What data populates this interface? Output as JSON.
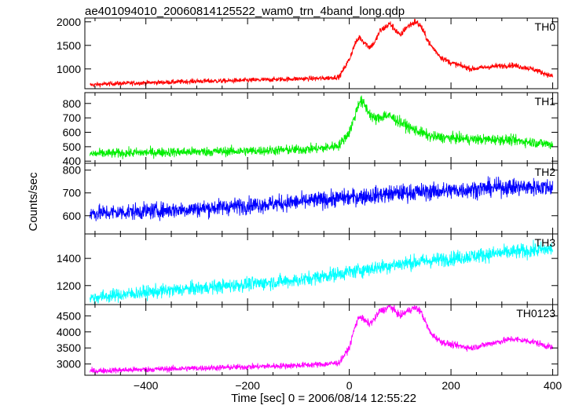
{
  "chart_data": {
    "type": "line",
    "title": "ae401094010_20060814125522_wam0_trn_4band_long.qdp",
    "xlabel": "Time [sec] 0 = 2006/08/14 12:55:22",
    "ylabel": "Counts/sec",
    "xlim": [
      -520,
      410
    ],
    "xticks": [
      -400,
      -200,
      0,
      200,
      400
    ],
    "grid": false,
    "panels": [
      {
        "name": "TH0",
        "color": "#ff0000",
        "ylim": [
          580,
          2080
        ],
        "yticks": [
          1000,
          1500,
          2000
        ],
        "x": [
          -510,
          -460,
          -400,
          -350,
          -300,
          -250,
          -200,
          -150,
          -100,
          -50,
          -20,
          0,
          10,
          20,
          30,
          40,
          50,
          60,
          70,
          80,
          90,
          100,
          110,
          120,
          130,
          140,
          150,
          160,
          180,
          200,
          240,
          280,
          320,
          360,
          400
        ],
        "y": [
          660,
          690,
          705,
          720,
          740,
          745,
          760,
          775,
          790,
          800,
          830,
          1200,
          1500,
          1680,
          1560,
          1460,
          1560,
          1800,
          1880,
          1960,
          1840,
          1700,
          1860,
          1940,
          2000,
          1920,
          1700,
          1500,
          1250,
          1130,
          1000,
          1050,
          1080,
          1000,
          840
        ]
      },
      {
        "name": "TH1",
        "color": "#00ee00",
        "ylim": [
          385,
          875
        ],
        "yticks": [
          400,
          500,
          600,
          700,
          800
        ],
        "x": [
          -510,
          -450,
          -400,
          -300,
          -200,
          -100,
          -50,
          -20,
          0,
          10,
          20,
          30,
          40,
          50,
          60,
          70,
          80,
          90,
          100,
          120,
          140,
          160,
          200,
          250,
          300,
          350,
          400
        ],
        "y": [
          450,
          455,
          460,
          465,
          470,
          480,
          490,
          510,
          600,
          700,
          820,
          790,
          730,
          690,
          700,
          720,
          710,
          690,
          670,
          630,
          600,
          570,
          560,
          550,
          550,
          535,
          515
        ]
      },
      {
        "name": "TH2",
        "color": "#0000ff",
        "ylim": [
          520,
          830
        ],
        "yticks": [
          600,
          700,
          800
        ],
        "x": [
          -510,
          -400,
          -300,
          -200,
          -100,
          0,
          100,
          200,
          300,
          400
        ],
        "y": [
          610,
          620,
          630,
          645,
          660,
          680,
          700,
          710,
          725,
          725
        ]
      },
      {
        "name": "TH3",
        "color": "#00ffff",
        "ylim": [
          1060,
          1580
        ],
        "yticks": [
          1200,
          1400
        ],
        "x": [
          -510,
          -400,
          -300,
          -200,
          -100,
          0,
          100,
          200,
          300,
          400
        ],
        "y": [
          1110,
          1150,
          1180,
          1210,
          1240,
          1300,
          1360,
          1400,
          1440,
          1470
        ]
      },
      {
        "name": "TH0123",
        "color": "#ff00ff",
        "ylim": [
          2650,
          4850
        ],
        "yticks": [
          3000,
          3500,
          4000,
          4500
        ],
        "x": [
          -510,
          -450,
          -400,
          -300,
          -200,
          -100,
          -50,
          -20,
          0,
          10,
          20,
          30,
          40,
          50,
          60,
          70,
          80,
          90,
          100,
          110,
          120,
          130,
          140,
          150,
          160,
          180,
          200,
          240,
          280,
          320,
          360,
          400
        ],
        "y": [
          2780,
          2810,
          2830,
          2870,
          2910,
          2960,
          2990,
          3040,
          3500,
          4100,
          4500,
          4350,
          4250,
          4400,
          4650,
          4700,
          4800,
          4650,
          4500,
          4600,
          4700,
          4750,
          4650,
          4300,
          3950,
          3700,
          3600,
          3500,
          3650,
          3780,
          3700,
          3500
        ]
      }
    ]
  }
}
